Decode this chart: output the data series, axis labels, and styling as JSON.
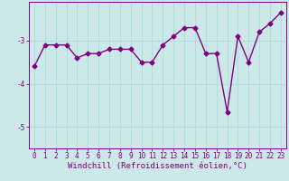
{
  "x": [
    0,
    1,
    2,
    3,
    4,
    5,
    6,
    7,
    8,
    9,
    10,
    11,
    12,
    13,
    14,
    15,
    16,
    17,
    18,
    19,
    20,
    21,
    22,
    23
  ],
  "y": [
    -3.6,
    -3.1,
    -3.1,
    -3.1,
    -3.4,
    -3.3,
    -3.3,
    -3.2,
    -3.2,
    -3.2,
    -3.5,
    -3.5,
    -3.1,
    -2.9,
    -2.7,
    -2.7,
    -3.3,
    -3.3,
    -4.65,
    -2.9,
    -3.5,
    -2.8,
    -2.6,
    -2.35
  ],
  "line_color": "#800080",
  "marker": "D",
  "marker_size": 2.5,
  "line_width": 1.0,
  "xlabel": "Windchill (Refroidissement éolien,°C)",
  "xlabel_fontsize": 6.5,
  "xlim": [
    -0.5,
    23.5
  ],
  "ylim": [
    -5.5,
    -2.1
  ],
  "yticks": [
    -5,
    -4,
    -3
  ],
  "ytick_labels": [
    "-5",
    "-4",
    "-3"
  ],
  "xticks": [
    0,
    1,
    2,
    3,
    4,
    5,
    6,
    7,
    8,
    9,
    10,
    11,
    12,
    13,
    14,
    15,
    16,
    17,
    18,
    19,
    20,
    21,
    22,
    23
  ],
  "grid_color": "#aadddd",
  "bg_color": "#cce8e8",
  "tick_fontsize": 5.5
}
